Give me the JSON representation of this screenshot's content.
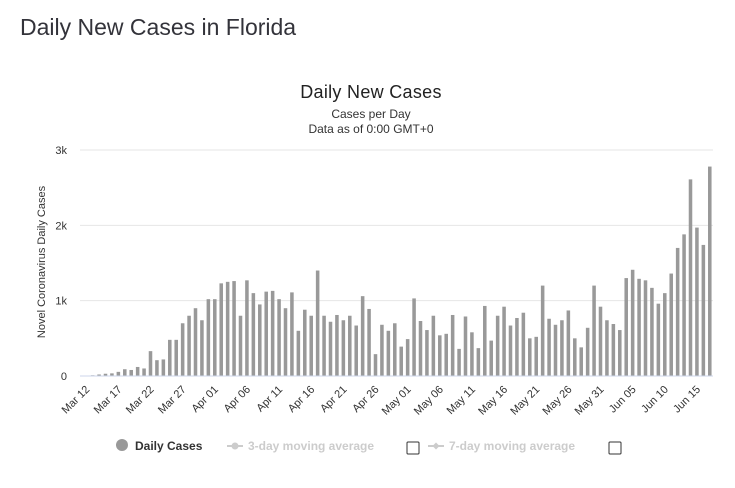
{
  "page_title": "Daily New Cases in Florida",
  "colors": {
    "bar": "#999999",
    "text": "#333333",
    "legend_inactive": "#cccccc",
    "grid": "#e6e6e6"
  },
  "legend": {
    "items": [
      {
        "label": "Daily Cases",
        "color": "#999999",
        "active": true,
        "icon": "circle-marker-icon"
      },
      {
        "label": "3-day moving average",
        "color": "#cccccc",
        "active": false,
        "icon": "line-marker-icon",
        "checkbox": true
      },
      {
        "label": "7-day moving average",
        "color": "#cccccc",
        "active": false,
        "icon": "line-marker-icon",
        "checkbox": true
      }
    ]
  },
  "chart_data": {
    "type": "bar",
    "title": "Daily New Cases",
    "subtitle": [
      "Cases per Day",
      "Data as of 0:00 GMT+0"
    ],
    "ylabel": "Novel Coronavirus Daily Cases",
    "xlabel": "",
    "ylim": [
      0,
      3000
    ],
    "y_ticks": [
      0,
      1000,
      2000,
      3000
    ],
    "y_tick_labels": [
      "0",
      "1k",
      "2k",
      "3k"
    ],
    "grid": true,
    "x_tick_labels": [
      "Mar 12",
      "Mar 17",
      "Mar 22",
      "Mar 27",
      "Apr 01",
      "Apr 06",
      "Apr 11",
      "Apr 16",
      "Apr 21",
      "Apr 26",
      "May 01",
      "May 06",
      "May 11",
      "May 16",
      "May 21",
      "May 26",
      "May 31",
      "Jun 05",
      "Jun 10",
      "Jun 15"
    ],
    "x_tick_every": 5,
    "series": [
      {
        "name": "Daily Cases",
        "color": "#999999",
        "values": [
          3,
          10,
          20,
          30,
          35,
          55,
          90,
          80,
          120,
          100,
          330,
          210,
          220,
          480,
          480,
          700,
          800,
          900,
          740,
          1020,
          1020,
          1230,
          1250,
          1260,
          800,
          1270,
          1100,
          950,
          1120,
          1130,
          1020,
          900,
          1110,
          600,
          880,
          800,
          1400,
          800,
          720,
          810,
          740,
          800,
          670,
          1060,
          890,
          290,
          680,
          600,
          700,
          390,
          490,
          1030,
          730,
          610,
          800,
          540,
          560,
          810,
          360,
          790,
          580,
          370,
          930,
          470,
          800,
          920,
          670,
          770,
          840,
          500,
          520,
          1200,
          760,
          680,
          740,
          870,
          500,
          380,
          640,
          1200,
          920,
          740,
          690,
          610,
          1300,
          1410,
          1290,
          1270,
          1170,
          960,
          1100,
          1360,
          1700,
          1880,
          2610,
          1970,
          1740,
          2780
        ]
      }
    ],
    "categories_start": "Mar 12",
    "categories_end": "Jun 17"
  }
}
